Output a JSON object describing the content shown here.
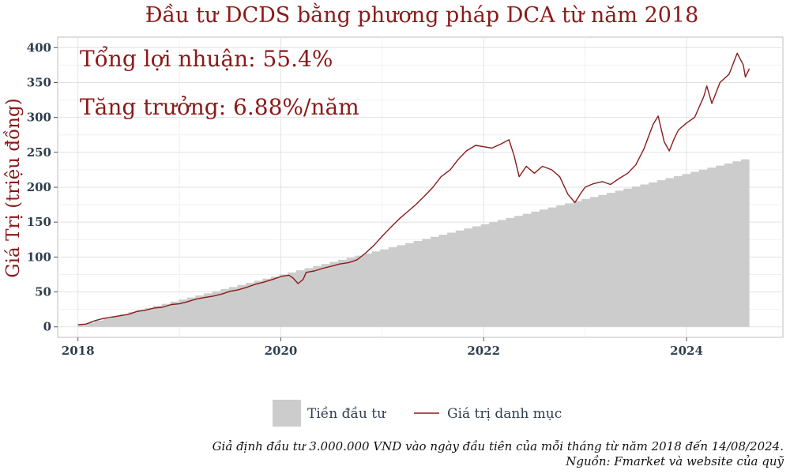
{
  "chart_data": {
    "type": "area",
    "title": "Đầu tư DCDS bằng phương pháp DCA từ năm 2018",
    "xlabel": "",
    "ylabel": "Giá Trị (triệu đồng)",
    "xlim": [
      2017.8,
      2024.95
    ],
    "ylim": [
      -15,
      415
    ],
    "xticks": [
      2018,
      2020,
      2022,
      2024
    ],
    "xtick_labels": [
      "2018",
      "2020",
      "2022",
      "2024"
    ],
    "yticks": [
      0,
      50,
      100,
      150,
      200,
      250,
      300,
      350,
      400
    ],
    "grid": true,
    "legend_position": "bottom",
    "annotations": [
      "Tổng lợi nhuận: 55.4%",
      "Tăng trưởng: 6.88%/năm"
    ],
    "caption": [
      "Giả định đầu tư 3.000.000 VND vào ngày đầu tiên của mỗi tháng từ năm 2018 đến 14/08/2024.",
      "Nguồn: Fmarket và website của quỹ"
    ],
    "series": [
      {
        "name": "Tiền đầu tư",
        "kind": "monthly-step-area",
        "color": "#cccccc",
        "start": 2018.0,
        "end": 2024.62,
        "monthly_amount": 3,
        "months": 80
      },
      {
        "name": "Giá trị danh mục",
        "kind": "line",
        "color": "#8b1a1a",
        "points": [
          [
            2018.0,
            3
          ],
          [
            2018.08,
            4
          ],
          [
            2018.17,
            9
          ],
          [
            2018.25,
            12
          ],
          [
            2018.33,
            14
          ],
          [
            2018.42,
            16
          ],
          [
            2018.5,
            18
          ],
          [
            2018.58,
            22
          ],
          [
            2018.67,
            24
          ],
          [
            2018.75,
            27
          ],
          [
            2018.83,
            28
          ],
          [
            2018.92,
            32
          ],
          [
            2019.0,
            33
          ],
          [
            2019.08,
            36
          ],
          [
            2019.17,
            40
          ],
          [
            2019.25,
            42
          ],
          [
            2019.33,
            44
          ],
          [
            2019.42,
            47
          ],
          [
            2019.5,
            51
          ],
          [
            2019.58,
            53
          ],
          [
            2019.67,
            57
          ],
          [
            2019.75,
            61
          ],
          [
            2019.83,
            64
          ],
          [
            2019.92,
            68
          ],
          [
            2020.0,
            72
          ],
          [
            2020.08,
            74
          ],
          [
            2020.12,
            70
          ],
          [
            2020.17,
            62
          ],
          [
            2020.22,
            68
          ],
          [
            2020.25,
            78
          ],
          [
            2020.33,
            80
          ],
          [
            2020.42,
            84
          ],
          [
            2020.5,
            87
          ],
          [
            2020.58,
            90
          ],
          [
            2020.67,
            92
          ],
          [
            2020.75,
            96
          ],
          [
            2020.83,
            105
          ],
          [
            2020.92,
            117
          ],
          [
            2021.0,
            130
          ],
          [
            2021.08,
            142
          ],
          [
            2021.17,
            155
          ],
          [
            2021.25,
            165
          ],
          [
            2021.33,
            175
          ],
          [
            2021.42,
            188
          ],
          [
            2021.5,
            200
          ],
          [
            2021.58,
            215
          ],
          [
            2021.67,
            225
          ],
          [
            2021.75,
            240
          ],
          [
            2021.83,
            252
          ],
          [
            2021.92,
            260
          ],
          [
            2022.0,
            258
          ],
          [
            2022.08,
            256
          ],
          [
            2022.17,
            262
          ],
          [
            2022.25,
            268
          ],
          [
            2022.3,
            245
          ],
          [
            2022.35,
            215
          ],
          [
            2022.42,
            230
          ],
          [
            2022.5,
            220
          ],
          [
            2022.58,
            230
          ],
          [
            2022.67,
            225
          ],
          [
            2022.75,
            215
          ],
          [
            2022.83,
            190
          ],
          [
            2022.9,
            178
          ],
          [
            2022.96,
            192
          ],
          [
            2023.0,
            200
          ],
          [
            2023.08,
            205
          ],
          [
            2023.17,
            208
          ],
          [
            2023.25,
            204
          ],
          [
            2023.33,
            212
          ],
          [
            2023.42,
            220
          ],
          [
            2023.5,
            232
          ],
          [
            2023.58,
            255
          ],
          [
            2023.67,
            290
          ],
          [
            2023.72,
            302
          ],
          [
            2023.78,
            265
          ],
          [
            2023.83,
            252
          ],
          [
            2023.88,
            270
          ],
          [
            2023.92,
            282
          ],
          [
            2024.0,
            292
          ],
          [
            2024.08,
            300
          ],
          [
            2024.17,
            330
          ],
          [
            2024.2,
            345
          ],
          [
            2024.25,
            320
          ],
          [
            2024.33,
            350
          ],
          [
            2024.42,
            362
          ],
          [
            2024.5,
            392
          ],
          [
            2024.56,
            375
          ],
          [
            2024.58,
            358
          ],
          [
            2024.62,
            370
          ]
        ]
      }
    ]
  }
}
